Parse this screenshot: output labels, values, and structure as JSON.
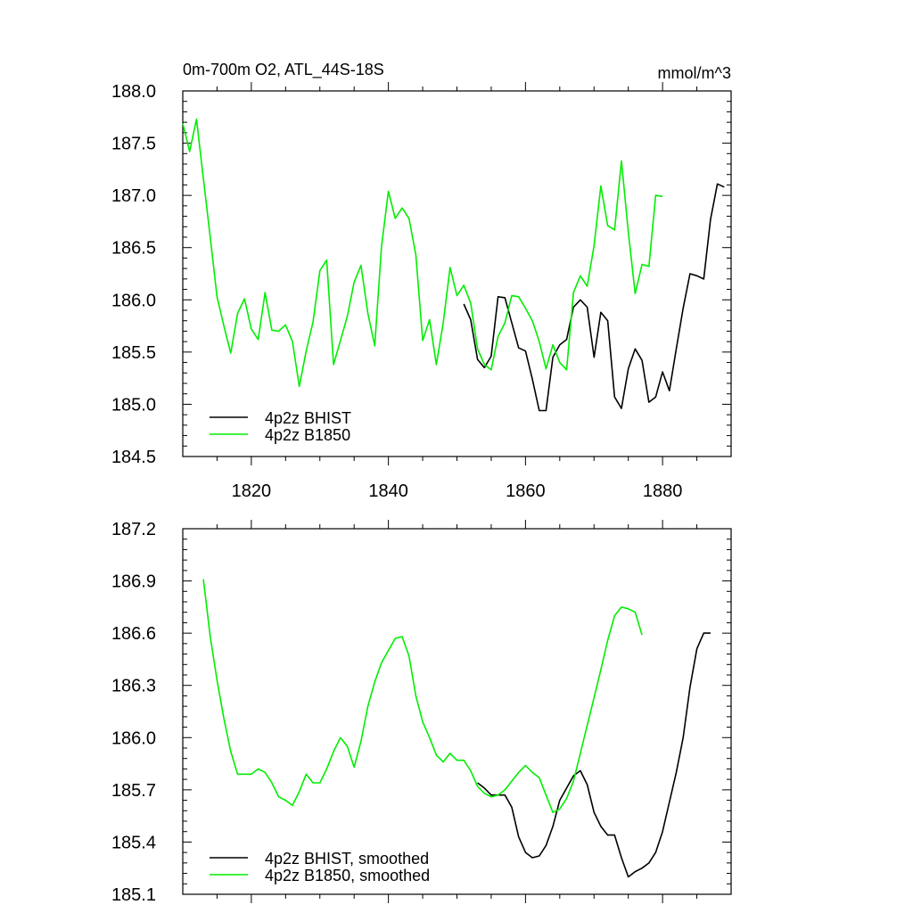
{
  "chart_data": [
    {
      "type": "line",
      "title": "0m-700m O2, ATL_44S-18S",
      "units": "mmol/m^3",
      "xlim": [
        1810,
        1890
      ],
      "ylim": [
        184.5,
        188.0
      ],
      "x_ticks": [
        1820,
        1840,
        1860,
        1880
      ],
      "x_tick_labels": [
        "1820",
        "1840",
        "1860",
        "1880"
      ],
      "y_ticks": [
        184.5,
        185.0,
        185.5,
        186.0,
        186.5,
        187.0,
        187.5,
        188.0
      ],
      "y_tick_labels": [
        "184.5",
        "185.0",
        "185.5",
        "186.0",
        "186.5",
        "187.0",
        "187.5",
        "188.0"
      ],
      "legend_position": "bottom-left",
      "series": [
        {
          "name": "4p2z BHIST",
          "color": "#000000",
          "x": [
            1851,
            1852,
            1853,
            1854,
            1855,
            1856,
            1857,
            1858,
            1859,
            1860,
            1861,
            1862,
            1863,
            1864,
            1865,
            1866,
            1867,
            1868,
            1869,
            1870,
            1871,
            1872,
            1873,
            1874,
            1875,
            1876,
            1877,
            1878,
            1879,
            1880,
            1881,
            1882,
            1883,
            1884,
            1885,
            1886,
            1887,
            1888,
            1889
          ],
          "values": [
            185.96,
            185.81,
            185.43,
            185.35,
            185.46,
            186.03,
            186.02,
            185.78,
            185.54,
            185.51,
            185.24,
            184.94,
            184.94,
            185.45,
            185.57,
            185.62,
            185.93,
            186.0,
            185.93,
            185.45,
            185.88,
            185.8,
            185.07,
            184.96,
            185.34,
            185.53,
            185.42,
            185.02,
            185.07,
            185.31,
            185.13,
            185.53,
            185.92,
            186.25,
            186.23,
            186.2,
            186.77,
            187.11,
            187.08
          ]
        },
        {
          "name": "4p2z B1850",
          "color": "#00ee00",
          "x": [
            1810,
            1811,
            1812,
            1813,
            1814,
            1815,
            1816,
            1817,
            1818,
            1819,
            1820,
            1821,
            1822,
            1823,
            1824,
            1825,
            1826,
            1827,
            1828,
            1829,
            1830,
            1831,
            1832,
            1833,
            1834,
            1835,
            1836,
            1837,
            1838,
            1839,
            1840,
            1841,
            1842,
            1843,
            1844,
            1845,
            1846,
            1847,
            1848,
            1849,
            1850,
            1851,
            1852,
            1853,
            1854,
            1855,
            1856,
            1857,
            1858,
            1859,
            1860,
            1861,
            1862,
            1863,
            1864,
            1865,
            1866,
            1867,
            1868,
            1869,
            1870,
            1871,
            1872,
            1873,
            1874,
            1875,
            1876,
            1877,
            1878,
            1879,
            1880
          ],
          "values": [
            187.69,
            187.42,
            187.73,
            187.16,
            186.6,
            186.03,
            185.75,
            185.49,
            185.87,
            186.01,
            185.72,
            185.62,
            186.07,
            185.71,
            185.7,
            185.76,
            185.6,
            185.17,
            185.51,
            185.79,
            186.28,
            186.38,
            185.38,
            185.61,
            185.84,
            186.17,
            186.33,
            185.87,
            185.56,
            186.51,
            187.04,
            186.78,
            186.88,
            186.78,
            186.43,
            185.61,
            185.81,
            185.38,
            185.78,
            186.31,
            186.04,
            186.14,
            185.97,
            185.53,
            185.38,
            185.33,
            185.65,
            185.78,
            186.04,
            186.03,
            185.92,
            185.8,
            185.6,
            185.34,
            185.57,
            185.4,
            185.33,
            186.07,
            186.23,
            186.13,
            186.52,
            187.09,
            186.71,
            186.67,
            187.33,
            186.65,
            186.06,
            186.34,
            186.32,
            187.0,
            186.99
          ]
        }
      ]
    },
    {
      "type": "line",
      "title": "",
      "units": "",
      "xlim": [
        1810,
        1890
      ],
      "ylim": [
        185.1,
        187.2
      ],
      "x_ticks": [
        1820,
        1840,
        1860,
        1880
      ],
      "x_tick_labels": [],
      "y_ticks": [
        185.1,
        185.4,
        185.7,
        186.0,
        186.3,
        186.6,
        186.9,
        187.2
      ],
      "y_tick_labels": [
        "185.1",
        "185.4",
        "185.7",
        "186.0",
        "186.3",
        "186.6",
        "186.9",
        "187.2"
      ],
      "legend_position": "bottom-left",
      "series": [
        {
          "name": "4p2z BHIST, smoothed",
          "color": "#000000",
          "x": [
            1853,
            1854,
            1855,
            1856,
            1857,
            1858,
            1859,
            1860,
            1861,
            1862,
            1863,
            1864,
            1865,
            1866,
            1867,
            1868,
            1869,
            1870,
            1871,
            1872,
            1873,
            1874,
            1875,
            1876,
            1877,
            1878,
            1879,
            1880,
            1881,
            1882,
            1883,
            1884,
            1885,
            1886,
            1887
          ],
          "values": [
            185.74,
            185.71,
            185.67,
            185.67,
            185.67,
            185.6,
            185.43,
            185.34,
            185.31,
            185.32,
            185.38,
            185.49,
            185.64,
            185.71,
            185.78,
            185.81,
            185.73,
            185.57,
            185.49,
            185.44,
            185.44,
            185.31,
            185.2,
            185.23,
            185.25,
            185.28,
            185.34,
            185.46,
            185.63,
            185.8,
            186.0,
            186.29,
            186.51,
            186.6,
            186.6
          ]
        },
        {
          "name": "4p2z B1850, smoothed",
          "color": "#00ee00",
          "x": [
            1813,
            1814,
            1815,
            1816,
            1817,
            1818,
            1819,
            1820,
            1821,
            1822,
            1823,
            1824,
            1825,
            1826,
            1827,
            1828,
            1829,
            1830,
            1831,
            1832,
            1833,
            1834,
            1835,
            1836,
            1837,
            1838,
            1839,
            1840,
            1841,
            1842,
            1843,
            1844,
            1845,
            1846,
            1847,
            1848,
            1849,
            1850,
            1851,
            1852,
            1853,
            1854,
            1855,
            1856,
            1857,
            1858,
            1859,
            1860,
            1861,
            1862,
            1863,
            1864,
            1865,
            1866,
            1867,
            1868,
            1869,
            1870,
            1871,
            1872,
            1873,
            1874,
            1875,
            1876,
            1877
          ],
          "values": [
            186.91,
            186.58,
            186.33,
            186.11,
            185.92,
            185.79,
            185.79,
            185.79,
            185.82,
            185.8,
            185.74,
            185.66,
            185.64,
            185.61,
            185.69,
            185.79,
            185.74,
            185.74,
            185.82,
            185.92,
            186.0,
            185.95,
            185.83,
            185.98,
            186.18,
            186.32,
            186.43,
            186.5,
            186.57,
            186.58,
            186.47,
            186.24,
            186.09,
            186.0,
            185.9,
            185.86,
            185.91,
            185.87,
            185.87,
            185.81,
            185.72,
            185.68,
            185.66,
            185.67,
            185.7,
            185.75,
            185.8,
            185.84,
            185.8,
            185.77,
            185.67,
            185.57,
            185.59,
            185.65,
            185.75,
            185.91,
            186.07,
            186.23,
            186.39,
            186.56,
            186.7,
            186.75,
            186.74,
            186.72,
            186.59
          ]
        }
      ]
    }
  ]
}
